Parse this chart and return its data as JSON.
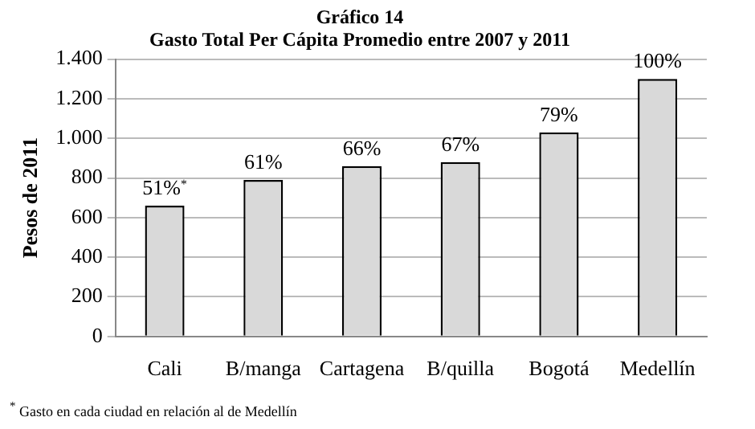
{
  "chart_data": {
    "type": "bar",
    "title": "Gráfico 14",
    "subtitle": "Gasto Total Per Cápita Promedio entre 2007 y 2011",
    "ylabel": "Pesos de 2011",
    "categories": [
      "Cali",
      "B/manga",
      "Cartagena",
      "B/quilla",
      "Bogotá",
      "Medellín"
    ],
    "values": [
      660,
      790,
      860,
      880,
      1030,
      1300
    ],
    "color": "#d9d9d9",
    "ylim": [
      0,
      1400
    ],
    "yticks": [
      {
        "value": 0,
        "label": "0"
      },
      {
        "value": 200,
        "label": "200"
      },
      {
        "value": 400,
        "label": "400"
      },
      {
        "value": 600,
        "label": "600"
      },
      {
        "value": 800,
        "label": "800"
      },
      {
        "value": 1000,
        "label": "1.000"
      },
      {
        "value": 1200,
        "label": "1.200"
      },
      {
        "value": 1400,
        "label": "1.400"
      }
    ],
    "grid": "y",
    "annotations": [
      {
        "text": "51%$^{*}$",
        "x": "Cali",
        "y": 660
      },
      {
        "text": "61%",
        "x": "B/manga",
        "y": 790
      },
      {
        "text": "66%",
        "x": "Cartagena",
        "y": 860
      },
      {
        "text": "67%",
        "x": "B/quilla",
        "y": 880
      },
      {
        "text": "79%",
        "x": "Bogotá",
        "y": 1030
      },
      {
        "text": "100%",
        "x": "Medellín",
        "y": 1300
      },
      "$^{*}$ Gasto en cada ciudad en relación al de Medellín"
    ]
  }
}
